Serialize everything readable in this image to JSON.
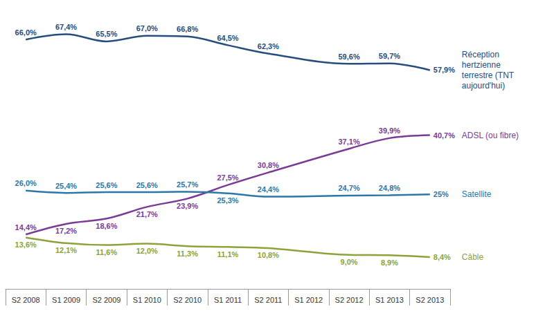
{
  "chart_data": {
    "type": "line",
    "categories": [
      "S2 2008",
      "S1 2009",
      "S2 2009",
      "S1 2010",
      "S2 2010",
      "S1 2011",
      "S2 2011",
      "S1 2012",
      "S2 2012",
      "S1 2013",
      "S2 2013"
    ],
    "ylim": [
      0,
      75
    ],
    "tick_labels": "x",
    "grid": false,
    "data_labels": true,
    "series": [
      {
        "name": "Réception hertzienne terrestre (TNT aujourd'hui)",
        "color": "#264d7e",
        "values": [
          66.0,
          67.4,
          65.5,
          67.0,
          66.8,
          64.5,
          62.3,
          null,
          59.6,
          59.7,
          57.9
        ],
        "value_labels": [
          "66,0%",
          "67,4%",
          "65,5%",
          "67,0%",
          "66,8%",
          "64,5%",
          "62,3%",
          null,
          "59,6%",
          "59,7%",
          "57,9%"
        ]
      },
      {
        "name": "ADSL (ou fibre)",
        "color": "#7a3b96",
        "values": [
          14.4,
          17.2,
          18.6,
          21.7,
          23.9,
          27.5,
          30.8,
          null,
          37.1,
          39.9,
          40.7
        ],
        "value_labels": [
          "14,4%",
          "17,2%",
          "18,6%",
          "21,7%",
          "23,9%",
          "27,5%",
          "30,8%",
          null,
          "37,1%",
          "39,9%",
          "40,7%"
        ]
      },
      {
        "name": "Satellite",
        "color": "#2a78a8",
        "values": [
          26.0,
          25.4,
          25.6,
          25.6,
          25.7,
          25.3,
          24.4,
          null,
          24.7,
          24.8,
          25
        ],
        "value_labels": [
          "26,0%",
          "25,4%",
          "25,6%",
          "25,6%",
          "25,7%",
          "25,3%",
          "24,4%",
          null,
          "24,7%",
          "24,8%",
          "25%"
        ]
      },
      {
        "name": "Câble",
        "color": "#8ca33a",
        "values": [
          13.6,
          12.1,
          11.6,
          12.0,
          11.3,
          11.1,
          10.8,
          null,
          9.0,
          8.9,
          8.4
        ],
        "value_labels": [
          "13,6%",
          "12,1%",
          "11,6%",
          "12,0%",
          "11,3%",
          "11,1%",
          "10,8%",
          null,
          "9,0%",
          "8,9%",
          "8,4%"
        ]
      }
    ]
  }
}
